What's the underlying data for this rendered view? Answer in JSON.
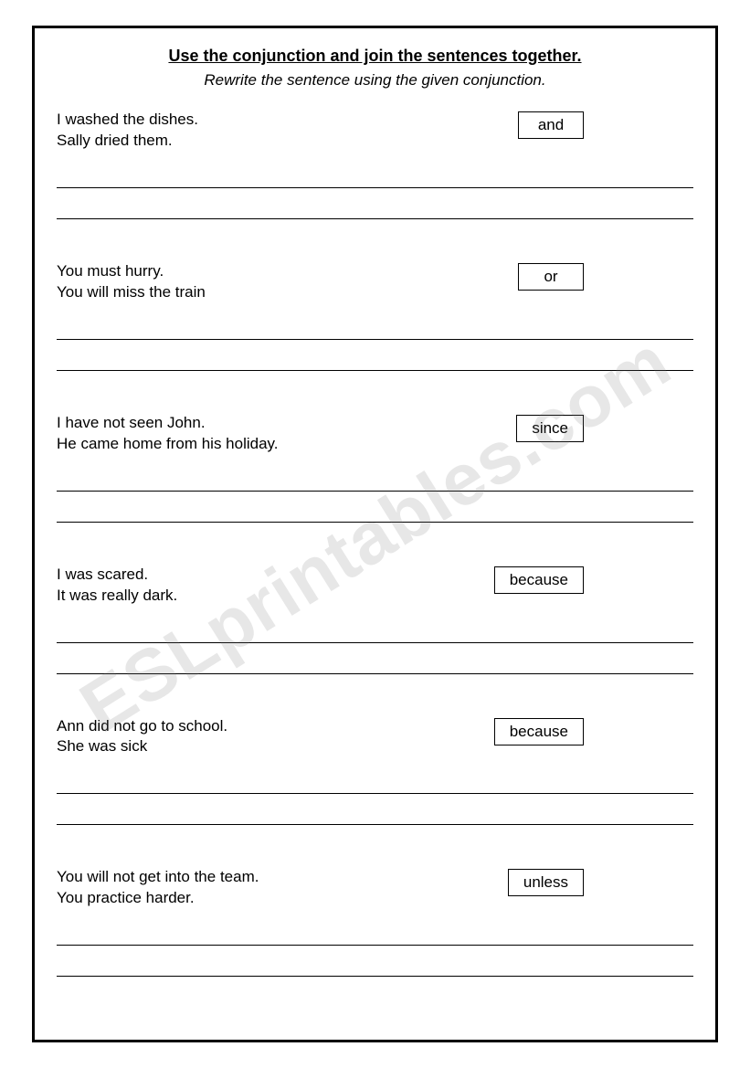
{
  "title": "Use the conjunction and join the sentences together.",
  "subtitle": "Rewrite the sentence using the given conjunction.",
  "watermark": "ESLprintables.com",
  "exercises": [
    {
      "line1": "I washed the dishes.",
      "line2": "Sally dried them.",
      "conj": "and"
    },
    {
      "line1": "You must hurry.",
      "line2": "You will miss the train",
      "conj": "or"
    },
    {
      "line1": "I have not seen John.",
      "line2": "He came home from his holiday.",
      "conj": "since"
    },
    {
      "line1": "I was scared.",
      "line2": "It was really dark.",
      "conj": "because"
    },
    {
      "line1": "Ann did not go to school.",
      "line2": "She was sick",
      "conj": "because"
    },
    {
      "line1": "You will not get into the team.",
      "line2": "You practice harder.",
      "conj": "unless"
    }
  ]
}
